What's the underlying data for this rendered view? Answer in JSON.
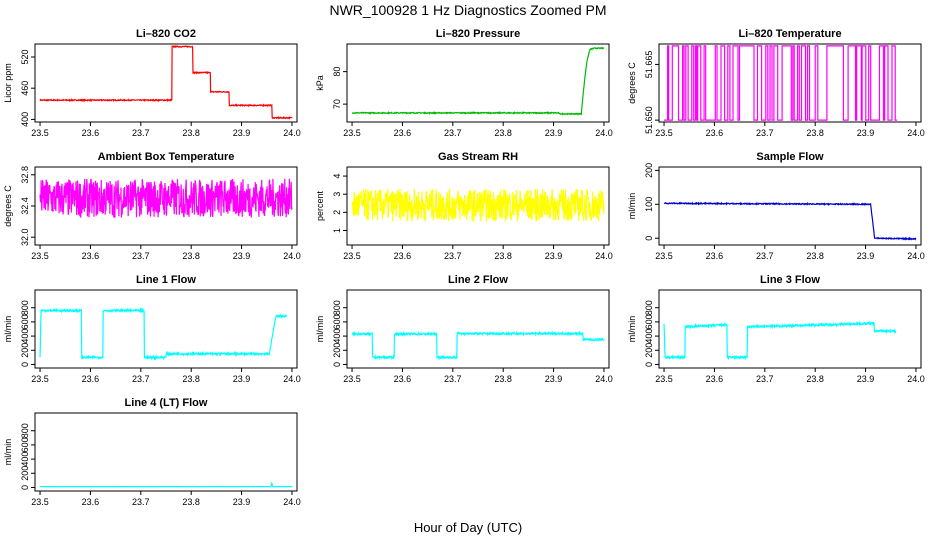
{
  "figure": {
    "title": "NWR_100928  1 Hz Diagnostics Zoomed PM",
    "xlabel": "Hour of Day (UTC)"
  },
  "chart_data": [
    {
      "type": "line",
      "title": "Li–820 CO2",
      "xlabel": "",
      "ylabel": "Licor ppm",
      "color": "#ff0000",
      "xlim": [
        23.49,
        24.01
      ],
      "ylim": [
        395,
        545
      ],
      "xticks": [
        "23.5",
        "23.6",
        "23.7",
        "23.8",
        "23.9",
        "24.0"
      ],
      "yticks": [
        "400",
        "460",
        "520"
      ],
      "x": [
        23.5,
        23.762,
        23.762,
        23.803,
        23.803,
        23.838,
        23.838,
        23.875,
        23.875,
        23.96,
        23.96,
        24.0
      ],
      "y": [
        437,
        437,
        540,
        540,
        490,
        490,
        453,
        453,
        427,
        427,
        403,
        403
      ],
      "noise": 1
    },
    {
      "type": "line",
      "title": "Li–820 Pressure",
      "xlabel": "",
      "ylabel": "kPa",
      "color": "#00bb00",
      "xlim": [
        23.49,
        24.01
      ],
      "ylim": [
        64.5,
        88.5
      ],
      "xticks": [
        "23.5",
        "23.6",
        "23.7",
        "23.8",
        "23.9",
        "24.0"
      ],
      "yticks": [
        "70",
        "80"
      ],
      "x": [
        23.5,
        23.91,
        23.912,
        23.955,
        23.958,
        23.962,
        23.966,
        23.972,
        23.98,
        24.0
      ],
      "y": [
        67.3,
        67.3,
        67.0,
        67.0,
        72,
        78,
        83,
        86.8,
        87.2,
        87.2
      ],
      "noise": 0.15
    },
    {
      "type": "switch",
      "title": "Li–820 Temperature",
      "xlabel": "",
      "ylabel": "degrees C",
      "color": "#ff00ff",
      "xlim": [
        23.49,
        24.01
      ],
      "ylim": [
        51.6495,
        51.6705
      ],
      "xticks": [
        "23.5",
        "23.6",
        "23.7",
        "23.8",
        "23.9",
        "24.0"
      ],
      "yticks": [
        "51.650",
        "51.665"
      ],
      "x": [
        23.5,
        24.0
      ],
      "y": [
        51.65,
        51.67
      ],
      "count": 90
    },
    {
      "type": "line",
      "title": "Ambient Box Temperature",
      "xlabel": "",
      "ylabel": "degrees C",
      "color": "#ff00ff",
      "xlim": [
        23.49,
        24.01
      ],
      "ylim": [
        31.9,
        32.9
      ],
      "xticks": [
        "23.5",
        "23.6",
        "23.7",
        "23.8",
        "23.9",
        "24.0"
      ],
      "yticks": [
        "32.0",
        "32.4",
        "32.8"
      ],
      "x": [
        23.5,
        24.0
      ],
      "y": [
        32.5,
        32.5
      ],
      "noise": 0.25
    },
    {
      "type": "line",
      "title": "Gas Stream RH",
      "xlabel": "",
      "ylabel": "percent",
      "color": "#ffff00",
      "xlim": [
        23.49,
        24.01
      ],
      "ylim": [
        0.2,
        4.5
      ],
      "xticks": [
        "23.5",
        "23.6",
        "23.7",
        "23.8",
        "23.9",
        "24.0"
      ],
      "yticks": [
        "1",
        "2",
        "3",
        "4"
      ],
      "x": [
        23.5,
        24.0
      ],
      "y": [
        2.4,
        2.4
      ],
      "noise": 0.9
    },
    {
      "type": "line",
      "title": "Sample Flow",
      "xlabel": "",
      "ylabel": "ml/min",
      "color": "#0000cc",
      "xlim": [
        23.49,
        24.01
      ],
      "ylim": [
        -20,
        210
      ],
      "xticks": [
        "23.5",
        "23.6",
        "23.7",
        "23.8",
        "23.9",
        "24.0"
      ],
      "yticks": [
        "0",
        "100",
        "200"
      ],
      "x": [
        23.5,
        23.91,
        23.918,
        24.0
      ],
      "y": [
        103,
        100,
        0,
        -2
      ],
      "noise": 1.5
    },
    {
      "type": "line",
      "title": "Line 1 Flow",
      "xlabel": "",
      "ylabel": "ml/min",
      "color": "#00ffff",
      "xlim": [
        23.49,
        24.01
      ],
      "ylim": [
        -50,
        1050
      ],
      "xticks": [
        "23.5",
        "23.6",
        "23.7",
        "23.8",
        "23.9",
        "24.0"
      ],
      "yticks": [
        "0",
        "200",
        "400",
        "600",
        "800"
      ],
      "x": [
        23.5,
        23.502,
        23.582,
        23.582,
        23.625,
        23.625,
        23.707,
        23.707,
        23.75,
        23.75,
        23.955,
        23.968,
        23.99
      ],
      "y": [
        100,
        760,
        760,
        100,
        100,
        760,
        760,
        100,
        100,
        150,
        150,
        680,
        680
      ],
      "noise": 14
    },
    {
      "type": "line",
      "title": "Line 2 Flow",
      "xlabel": "",
      "ylabel": "ml/min",
      "color": "#00ffff",
      "xlim": [
        23.49,
        24.01
      ],
      "ylim": [
        -50,
        1050
      ],
      "xticks": [
        "23.5",
        "23.6",
        "23.7",
        "23.8",
        "23.9",
        "24.0"
      ],
      "yticks": [
        "0",
        "200",
        "400",
        "600",
        "800"
      ],
      "x": [
        23.5,
        23.54,
        23.54,
        23.584,
        23.584,
        23.668,
        23.668,
        23.708,
        23.708,
        23.958,
        23.958,
        24.0
      ],
      "y": [
        430,
        430,
        100,
        100,
        430,
        430,
        100,
        100,
        435,
        435,
        350,
        350
      ],
      "noise": 14
    },
    {
      "type": "line",
      "title": "Line 3 Flow",
      "xlabel": "",
      "ylabel": "ml/min",
      "color": "#00ffff",
      "xlim": [
        23.49,
        24.01
      ],
      "ylim": [
        -50,
        1050
      ],
      "xticks": [
        "23.5",
        "23.6",
        "23.7",
        "23.8",
        "23.9",
        "24.0"
      ],
      "yticks": [
        "0",
        "200",
        "400",
        "600",
        "800"
      ],
      "x": [
        23.5,
        23.502,
        23.542,
        23.542,
        23.625,
        23.625,
        23.665,
        23.665,
        23.917,
        23.917,
        23.96
      ],
      "y": [
        580,
        100,
        100,
        530,
        560,
        100,
        100,
        530,
        580,
        470,
        470
      ],
      "noise": 14
    },
    {
      "type": "line",
      "title": "Line 4 (LT) Flow",
      "xlabel": "",
      "ylabel": "ml/min",
      "color": "#00ffff",
      "xlim": [
        23.49,
        24.01
      ],
      "ylim": [
        -50,
        1050
      ],
      "xticks": [
        "23.5",
        "23.6",
        "23.7",
        "23.8",
        "23.9",
        "24.0"
      ],
      "yticks": [
        "0",
        "200",
        "400",
        "600",
        "800"
      ],
      "x": [
        23.5,
        23.958,
        23.96,
        23.962,
        24.0
      ],
      "y": [
        12,
        12,
        60,
        12,
        12
      ],
      "noise": 2
    }
  ]
}
